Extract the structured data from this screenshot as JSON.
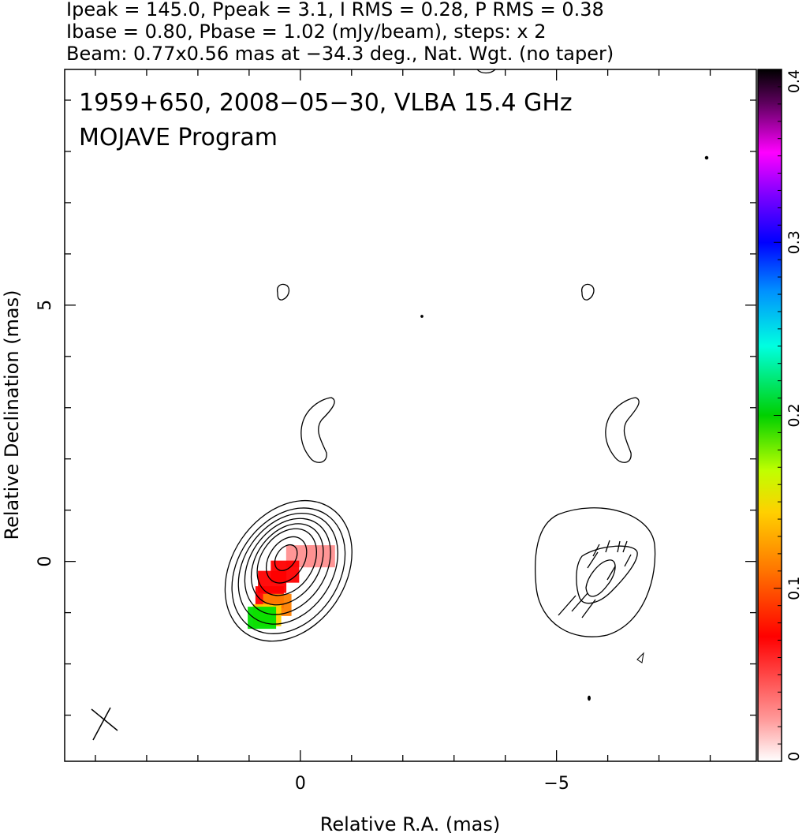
{
  "header": {
    "line1": "Ipeak = 145.0, Ppeak = 3.1, I RMS = 0.28, P RMS = 0.38",
    "line2": "Ibase = 0.80, Pbase = 1.02 (mJy/beam), steps: x 2",
    "line3": "Beam: 0.77x0.56 mas at −34.3 deg., Nat. Wgt. (no taper)"
  },
  "panel": {
    "title_line1": "1959+650, 2008−05−30, VLBA 15.4 GHz",
    "title_line2": "MOJAVE Program"
  },
  "chart_data": {
    "type": "contour",
    "xlabel": "Relative R.A. (mas)",
    "ylabel": "Relative Declination (mas)",
    "xlim": [
      4.6,
      -8.9
    ],
    "ylim": [
      -3.9,
      9.6
    ],
    "x_ticks": [
      {
        "value": 0,
        "label": "0"
      },
      {
        "value": -5,
        "label": "−5"
      }
    ],
    "y_ticks": [
      {
        "value": 0,
        "label": "0"
      },
      {
        "value": 5,
        "label": "5"
      }
    ],
    "colorbar": {
      "range": [
        0,
        0.4
      ],
      "ticks": [
        {
          "value": 0,
          "label": "0"
        },
        {
          "value": 0.1,
          "label": "0.1"
        },
        {
          "value": 0.2,
          "label": "0.2"
        },
        {
          "value": 0.3,
          "label": "0.3"
        },
        {
          "value": 0.4,
          "label": "0.4"
        }
      ],
      "colormap": [
        "#ffffff",
        "#ff9090",
        "#ff0000",
        "#ff8000",
        "#ffd000",
        "#c0ff00",
        "#00e000",
        "#00ffe0",
        "#0090ff",
        "#0000ff",
        "#8000ff",
        "#ff00ff",
        "#600060",
        "#000000"
      ]
    },
    "left_panel_contours": {
      "center": [
        0,
        0
      ],
      "levels_count": 8,
      "position_angle_deg": -34.3
    },
    "polarization_color_pixels": [
      {
        "x": 0.0,
        "y": 0.1,
        "v": 0.02
      },
      {
        "x": -0.4,
        "y": 0.1,
        "v": 0.03
      },
      {
        "x": 0.3,
        "y": -0.2,
        "v": 0.05
      },
      {
        "x": 0.55,
        "y": -0.4,
        "v": 0.06
      },
      {
        "x": 0.6,
        "y": -0.7,
        "v": 0.065
      },
      {
        "x": 0.45,
        "y": -0.85,
        "v": 0.08
      },
      {
        "x": 0.65,
        "y": -1.05,
        "v": 0.12
      },
      {
        "x": 0.75,
        "y": -1.1,
        "v": 0.19
      }
    ],
    "right_panel": {
      "center": [
        -5.7,
        -0.3
      ],
      "evpa_vectors": 10
    },
    "beam": {
      "major_mas": 0.77,
      "minor_mas": 0.56,
      "pa_deg": -34.3
    }
  }
}
